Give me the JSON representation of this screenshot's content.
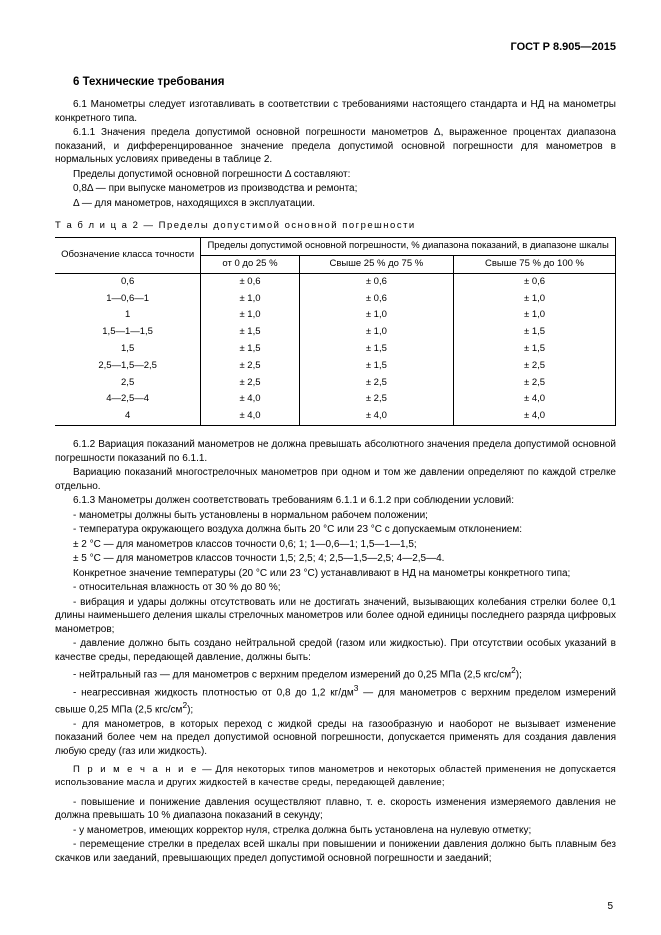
{
  "header": {
    "code": "ГОСТ Р 8.905—2015"
  },
  "section": {
    "num": "6",
    "title": "Технические требования"
  },
  "para": {
    "p1": "6.1 Манометры следует изготавливать в соответствии с требованиями настоящего стандарта и НД на манометры конкретного типа.",
    "p2": "6.1.1 Значения предела допустимой основной погрешности манометров Δ, выраженное процентах диапазона показаний, и дифференцированное значение предела допустимой основной погрешности для манометров в нормальных условиях приведены в таблице 2.",
    "p3": "Пределы допустимой основной погрешности Δ составляют:",
    "p4": "0,8Δ — при выпуске манометров из производства и ремонта;",
    "p5": "Δ — для манометров, находящихся в эксплуатации.",
    "tcap": "Т а б л и ц а   2 — Пределы допустимой основной погрешности",
    "p6": "6.1.2 Вариация показаний манометров не должна превышать абсолютного значения предела допустимой основной погрешности показаний по 6.1.1.",
    "p7": "Вариацию показаний многострелочных манометров при одном и том же давлении определяют по каждой стрелке отдельно.",
    "p8": "6.1.3 Манометры должен соответствовать требованиям 6.1.1 и 6.1.2 при соблюдении условий:",
    "p9": "- манометры должны быть установлены в нормальном рабочем положении;",
    "p10": "- температура окружающего воздуха должна быть 20 °С или 23 °С с допускаемым отклонением:",
    "p11": "± 2 °С — для манометров классов точности 0,6; 1; 1—0,6—1; 1,5—1—1,5;",
    "p12": "± 5 °С — для манометров классов точности 1,5; 2,5; 4; 2,5—1,5—2,5; 4—2,5—4.",
    "p13": "Конкретное значение температуры (20 °С или 23 °С) устанавливают в НД на манометры конкретного типа;",
    "p14": "- относительная влажность от 30 % до 80 %;",
    "p15": "- вибрация и удары должны отсутствовать или не достигать значений, вызывающих колебания стрелки более 0,1 длины наименьшего деления шкалы стрелочных манометров или более одной единицы последнего разряда цифровых манометров;",
    "p16": "- давление должно быть создано нейтральной средой (газом или жидкостью). При отсутствии особых указаний в качестве среды, передающей давление, должны быть:",
    "p17a": "- нейтральный газ — для манометров с верхним пределом измерений до 0,25 МПа (2,5 кгс/см",
    "p17b": ");",
    "p18a": "- неагрессивная жидкость плотностью от 0,8 до 1,2 кг/дм",
    "p18b": " — для манометров с верхним пределом измерений свыше 0,25 МПа (2,5 кгс/см",
    "p18c": ");",
    "p19": "- для манометров, в которых переход с жидкой среды на газообразную и наоборот не вызывает изменение показаний более чем на предел допустимой основной погрешности, допускается применять для создания давления любую среду (газ или жидкость).",
    "note": "— Для некоторых типов манометров и некоторых областей применения не допускается использование масла и других жидкостей в качестве среды, передающей давление;",
    "noteLabel": "П р и м е ч а н и е",
    "p20": "- повышение и понижение давления осуществляют плавно, т. е. скорость изменения измеряемого давления не должна превышать 10 % диапазона показаний в секунду;",
    "p21": "- у манометров, имеющих корректор нуля, стрелка должна быть установлена на нулевую отметку;",
    "p22": "- перемещение стрелки в пределах всей шкалы при повышении и понижении давления должно быть плавным без скачков или заеданий, превышающих предел допустимой основной погрешности и заеданий;"
  },
  "table": {
    "colA": "Обозначение класса точности",
    "headMain": "Пределы допустимой основной погрешности, % диапазона показаний, в диапазоне шкалы",
    "sub1": "от 0 до 25 %",
    "sub2": "Свыше 25 % до 75 %",
    "sub3": "Свыше 75 % до 100 %",
    "rows": [
      {
        "c": "0,6",
        "v1": "± 0,6",
        "v2": "± 0,6",
        "v3": "± 0,6"
      },
      {
        "c": "1—0,6—1",
        "v1": "± 1,0",
        "v2": "± 0,6",
        "v3": "± 1,0"
      },
      {
        "c": "1",
        "v1": "± 1,0",
        "v2": "± 1,0",
        "v3": "± 1,0"
      },
      {
        "c": "1,5—1—1,5",
        "v1": "± 1,5",
        "v2": "± 1,0",
        "v3": "± 1,5"
      },
      {
        "c": "1,5",
        "v1": "± 1,5",
        "v2": "± 1,5",
        "v3": "± 1,5"
      },
      {
        "c": "2,5—1,5—2,5",
        "v1": "± 2,5",
        "v2": "± 1,5",
        "v3": "± 2,5"
      },
      {
        "c": "2,5",
        "v1": "± 2,5",
        "v2": "± 2,5",
        "v3": "± 2,5"
      },
      {
        "c": "4—2,5—4",
        "v1": "± 4,0",
        "v2": "± 2,5",
        "v3": "± 4,0"
      },
      {
        "c": "4",
        "v1": "± 4,0",
        "v2": "± 4,0",
        "v3": "± 4,0"
      }
    ]
  },
  "sup": {
    "two": "2",
    "three": "3"
  },
  "pagenum": "5"
}
